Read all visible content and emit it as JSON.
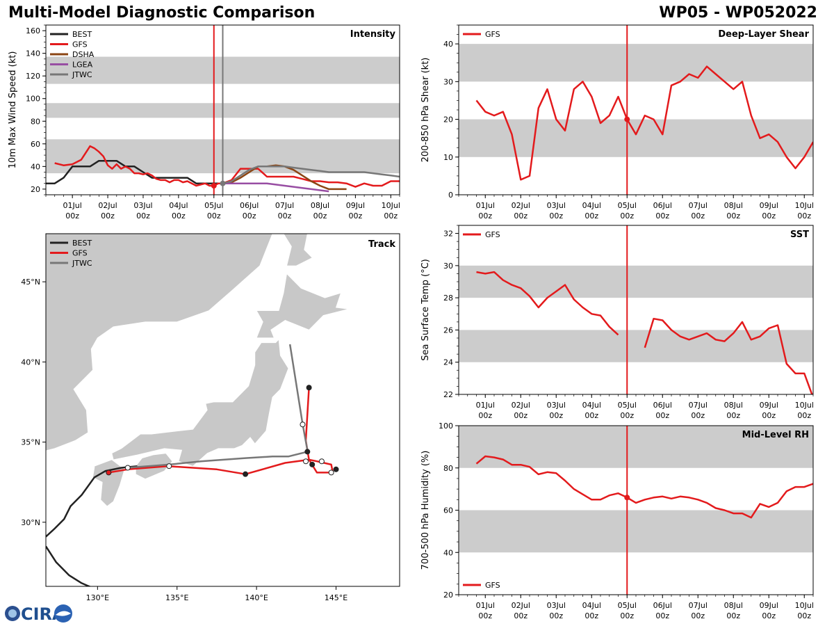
{
  "page": {
    "title_left": "Multi-Model Diagnostic Comparison",
    "title_right": "WP05 - WP052022",
    "logo_text": "CIRA"
  },
  "colors": {
    "BEST": "#222222",
    "GFS": "#e31a1c",
    "DSHA": "#8b4513",
    "LGEA": "#984ea3",
    "JTWC": "#777777",
    "band": "#cccccc",
    "land": "#c8c8c8",
    "vline": "#e31a1c",
    "vline_jtwc": "#777777"
  },
  "time_axis": {
    "tick_labels": [
      "01Jul\n00z",
      "02Jul\n00z",
      "03Jul\n00z",
      "04Jul\n00z",
      "05Jul\n00z",
      "06Jul\n00z",
      "07Jul\n00z",
      "08Jul\n00z",
      "09Jul\n00z",
      "10Jul\n00z"
    ],
    "xlim": [
      -0.75,
      9.25
    ]
  },
  "chart_data": [
    {
      "id": "intensity",
      "type": "line",
      "title": "Intensity",
      "ylabel": "10m Max Wind Speed (kt)",
      "ylim": [
        15,
        165
      ],
      "yticks": [
        20,
        40,
        60,
        80,
        100,
        120,
        140,
        160
      ],
      "bands": [
        [
          34,
          64
        ],
        [
          83,
          96
        ],
        [
          113,
          137
        ]
      ],
      "vlines": [
        {
          "x": 0.0,
          "color": "GFS"
        },
        {
          "x": 0.25,
          "color": "JTWC"
        }
      ],
      "vline_offset_days": 4,
      "legend": [
        "BEST",
        "GFS",
        "DSHA",
        "LGEA",
        "JTWC"
      ],
      "legend_position": "upper-left",
      "series": [
        {
          "name": "BEST",
          "x": [
            -0.75,
            -0.5,
            -0.25,
            0,
            0.25,
            0.5,
            0.75,
            1,
            1.25,
            1.5,
            1.75,
            2,
            2.25,
            2.5,
            2.75,
            3,
            3.25,
            3.5,
            3.75,
            4,
            4.25
          ],
          "y": [
            25,
            25,
            30,
            40,
            40,
            40,
            45,
            45,
            45,
            40,
            40,
            35,
            30,
            30,
            30,
            30,
            30,
            25,
            25,
            25,
            25
          ]
        },
        {
          "name": "GFS",
          "x": [
            -0.5,
            -0.25,
            0,
            0.25,
            0.5,
            0.625,
            0.75,
            0.875,
            1,
            1.125,
            1.25,
            1.375,
            1.5,
            1.625,
            1.75,
            1.875,
            2,
            2.125,
            2.25,
            2.375,
            2.5,
            2.625,
            2.75,
            2.875,
            3,
            3.125,
            3.25,
            3.375,
            3.5,
            3.625,
            3.75,
            3.875,
            4,
            4.125,
            4.25,
            4.5,
            4.75,
            5,
            5.25,
            5.5,
            5.75,
            6,
            6.25,
            6.5,
            6.75,
            7,
            7.25,
            7.5,
            7.75,
            8,
            8.25,
            8.5,
            8.75,
            9,
            9.25
          ],
          "y": [
            43,
            41,
            42,
            46,
            58,
            56,
            53,
            49,
            41,
            38,
            42,
            38,
            40,
            38,
            34,
            34,
            33,
            34,
            32,
            29,
            28,
            28,
            26,
            28,
            28,
            26,
            27,
            25,
            23,
            24,
            25,
            23,
            23,
            25,
            25,
            28,
            38,
            38,
            38,
            31,
            31,
            31,
            31,
            29,
            27,
            27,
            26,
            26,
            25,
            22,
            25,
            23,
            23,
            27,
            27
          ]
        },
        {
          "name": "DSHA",
          "x": [
            4.25,
            4.5,
            4.75,
            5,
            5.25,
            5.5,
            5.75,
            6,
            6.25,
            6.5,
            6.75,
            7,
            7.25,
            7.5,
            7.75
          ],
          "y": [
            25,
            26,
            30,
            35,
            40,
            40,
            41,
            40,
            37,
            32,
            27,
            23,
            20,
            20,
            20
          ]
        },
        {
          "name": "LGEA",
          "x": [
            4.25,
            4.5,
            4.75,
            5,
            5.25,
            5.5,
            5.75,
            6,
            6.25,
            6.5,
            6.75,
            7,
            7.25
          ],
          "y": [
            25,
            25,
            25,
            25,
            25,
            25,
            24,
            23,
            22,
            21,
            20,
            19,
            18
          ]
        },
        {
          "name": "JTWC",
          "x": [
            4.25,
            4.5,
            4.75,
            5,
            5.25,
            5.5,
            5.75,
            6,
            6.25,
            6.5,
            6.75,
            7,
            7.25,
            7.5,
            7.75,
            8,
            8.25,
            8.5,
            8.75,
            9,
            9.25
          ],
          "y": [
            25,
            27,
            32,
            37,
            40,
            40,
            40,
            40,
            39,
            38,
            37,
            36,
            35,
            35,
            35,
            35,
            35,
            34,
            33,
            32,
            31
          ]
        }
      ]
    },
    {
      "id": "shear",
      "type": "line",
      "title": "Deep-Layer Shear",
      "ylabel": "200-850 hPa Shear (kt)",
      "ylim": [
        0,
        45
      ],
      "yticks": [
        0,
        10,
        20,
        30,
        40
      ],
      "bands": [
        [
          10,
          20
        ],
        [
          30,
          40
        ]
      ],
      "vlines": [
        {
          "x": 4.0,
          "color": "GFS"
        }
      ],
      "legend": [
        "GFS"
      ],
      "legend_position": "upper-left",
      "series": [
        {
          "name": "GFS",
          "x": [
            -0.25,
            0,
            0.25,
            0.5,
            0.75,
            1,
            1.25,
            1.5,
            1.75,
            2,
            2.25,
            2.5,
            2.75,
            3,
            3.25,
            3.5,
            3.75,
            4,
            4.25,
            4.5,
            4.75,
            5,
            5.25,
            5.5,
            5.75,
            6,
            6.25,
            6.5,
            6.75,
            7,
            7.25,
            7.5,
            7.75,
            8,
            8.25,
            8.5,
            8.75,
            9,
            9.25
          ],
          "y": [
            25,
            22,
            21,
            22,
            16,
            4,
            5,
            23,
            28,
            20,
            17,
            28,
            30,
            26,
            19,
            21,
            26,
            20,
            16,
            21,
            20,
            16,
            29,
            30,
            32,
            31,
            34,
            32,
            30,
            28,
            30,
            21,
            15,
            16,
            14,
            10,
            7,
            10,
            14
          ]
        }
      ],
      "marker": {
        "x": 4.0,
        "y": 20
      }
    },
    {
      "id": "sst",
      "type": "line",
      "title": "SST",
      "ylabel": "Sea Surface Temp (°C)",
      "ylim": [
        22,
        32.5
      ],
      "yticks": [
        22,
        24,
        26,
        28,
        30,
        32
      ],
      "bands": [
        [
          24,
          26
        ],
        [
          28,
          30
        ]
      ],
      "vlines": [
        {
          "x": 4.0,
          "color": "GFS"
        }
      ],
      "legend": [
        "GFS"
      ],
      "legend_position": "upper-left",
      "series": [
        {
          "name": "GFS",
          "segments": [
            {
              "x": [
                -0.25,
                0,
                0.25,
                0.5,
                0.75,
                1,
                1.25,
                1.5,
                1.75,
                2,
                2.25,
                2.5,
                2.75,
                3,
                3.25,
                3.5,
                3.75
              ],
              "y": [
                29.6,
                29.5,
                29.6,
                29.1,
                28.8,
                28.6,
                28.1,
                27.4,
                28.0,
                28.4,
                28.8,
                27.9,
                27.4,
                27.0,
                26.9,
                26.2,
                25.7
              ]
            },
            {
              "x": [
                4.5,
                4.75,
                5,
                5.25,
                5.5,
                5.75,
                6,
                6.25,
                6.5,
                6.75,
                7,
                7.25,
                7.5,
                7.75,
                8,
                8.25,
                8.5,
                8.75,
                9,
                9.25
              ],
              "y": [
                24.9,
                26.7,
                26.6,
                26.0,
                25.6,
                25.4,
                25.6,
                25.8,
                25.4,
                25.3,
                25.8,
                26.5,
                25.4,
                25.6,
                26.1,
                26.3,
                23.9,
                23.3,
                23.3,
                21.8
              ]
            }
          ]
        }
      ]
    },
    {
      "id": "rh",
      "type": "line",
      "title": "Mid-Level RH",
      "ylabel": "700-500 hPa Humidity (%)",
      "ylim": [
        20,
        100
      ],
      "yticks": [
        20,
        40,
        60,
        80,
        100
      ],
      "bands": [
        [
          40,
          60
        ],
        [
          80,
          100
        ]
      ],
      "vlines": [
        {
          "x": 4.0,
          "color": "GFS"
        }
      ],
      "legend": [
        "GFS"
      ],
      "legend_position": "lower-left",
      "series": [
        {
          "name": "GFS",
          "x": [
            -0.25,
            0,
            0.25,
            0.5,
            0.75,
            1,
            1.25,
            1.5,
            1.75,
            2,
            2.25,
            2.5,
            2.75,
            3,
            3.25,
            3.5,
            3.75,
            4,
            4.25,
            4.5,
            4.75,
            5,
            5.25,
            5.5,
            5.75,
            6,
            6.25,
            6.5,
            6.75,
            7,
            7.25,
            7.5,
            7.75,
            8,
            8.25,
            8.5,
            8.75,
            9,
            9.25
          ],
          "y": [
            82,
            85.5,
            85,
            84,
            81.5,
            81.5,
            80.5,
            77,
            78,
            77.5,
            74,
            70,
            67.5,
            65,
            65,
            67,
            68,
            66,
            63.5,
            65,
            66,
            66.5,
            65.5,
            66.5,
            66,
            65,
            63.5,
            61,
            60,
            58.5,
            58.5,
            56.5,
            63,
            61.5,
            63.5,
            69,
            71,
            71,
            72.5
          ]
        }
      ],
      "marker": {
        "x": 4.0,
        "y": 66
      }
    },
    {
      "id": "track",
      "type": "scatter",
      "title": "Track",
      "lon_range": [
        126.75,
        149
      ],
      "lat_range": [
        26,
        48
      ],
      "lon_ticks": [
        130,
        135,
        140,
        145
      ],
      "lat_ticks": [
        30,
        35,
        40,
        45
      ],
      "lon_tick_labels": [
        "130°E",
        "135°E",
        "140°E",
        "145°E"
      ],
      "lat_tick_labels": [
        "30°N",
        "35°N",
        "40°N",
        "45°N"
      ],
      "legend": [
        "BEST",
        "GFS",
        "JTWC"
      ],
      "legend_position": "upper-left",
      "series": [
        {
          "name": "BEST",
          "lon": [
            126.75,
            127.3,
            127.9,
            128.3,
            129.0,
            129.8,
            130.5,
            131.5,
            132.5
          ],
          "lat": [
            29.1,
            29.6,
            30.2,
            31.0,
            31.7,
            32.8,
            33.2,
            33.4,
            33.5
          ]
        },
        {
          "name": "BEST",
          "lon": [
            126.75,
            127.4,
            128.2,
            129.0,
            129.7
          ],
          "lat": [
            28.5,
            27.5,
            26.7,
            26.2,
            25.9
          ]
        },
        {
          "name": "GFS",
          "lon": [
            130.7,
            131.9,
            134.4,
            137.5,
            139.3,
            141.8,
            143.3,
            143.8,
            144.7,
            144.8,
            143.8,
            143.3,
            143.1,
            143.3
          ],
          "lat": [
            33.1,
            33.3,
            33.5,
            33.3,
            33.0,
            33.7,
            33.9,
            33.8,
            33.6,
            33.1,
            33.1,
            33.9,
            35.1,
            38.4
          ]
        },
        {
          "name": "JTWC",
          "lon": [
            131.9,
            134.5,
            136.5,
            139.3,
            141.0,
            142.0,
            143.2,
            143.2,
            142.9,
            142.1
          ],
          "lat": [
            33.4,
            33.6,
            33.8,
            34.0,
            34.1,
            34.1,
            34.4,
            34.5,
            36.1,
            41.1
          ]
        }
      ],
      "points": [
        {
          "name": "GFS",
          "lon": 130.7,
          "lat": 33.1,
          "fill": "GFS"
        },
        {
          "name": "BEST",
          "lon": 139.3,
          "lat": 33.0,
          "fill": "dark"
        },
        {
          "name": "BEST",
          "lon": 143.5,
          "lat": 33.6,
          "fill": "dark"
        },
        {
          "name": "BEST",
          "lon": 145.0,
          "lat": 33.3,
          "fill": "dark"
        },
        {
          "name": "BEST",
          "lon": 143.3,
          "lat": 38.4,
          "fill": "dark"
        },
        {
          "name": "BEST",
          "lon": 143.2,
          "lat": 34.4,
          "fill": "dark"
        },
        {
          "name": "JTWC",
          "lon": 131.9,
          "lat": 33.4,
          "fill": "white"
        },
        {
          "name": "JTWC",
          "lon": 134.5,
          "lat": 33.5,
          "fill": "white"
        },
        {
          "name": "JTWC",
          "lon": 143.1,
          "lat": 33.8,
          "fill": "white"
        },
        {
          "name": "JTWC",
          "lon": 144.1,
          "lat": 33.8,
          "fill": "white"
        },
        {
          "name": "JTWC",
          "lon": 144.7,
          "lat": 33.1,
          "fill": "white"
        },
        {
          "name": "JTWC",
          "lon": 142.9,
          "lat": 36.1,
          "fill": "white"
        }
      ]
    }
  ]
}
